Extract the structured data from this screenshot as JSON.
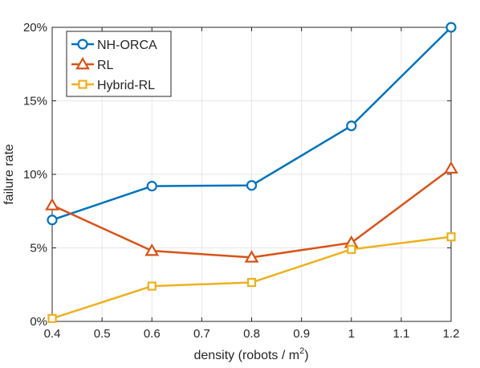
{
  "chart_data": {
    "type": "line",
    "xlabel": "density (robots / m",
    "xlabel_sup": "2",
    "xlabel_end": ")",
    "ylabel": "failure rate",
    "xlim": [
      0.4,
      1.2
    ],
    "ylim": [
      0,
      0.2
    ],
    "x_ticks": [
      0.4,
      0.5,
      0.6,
      0.7,
      0.8,
      0.9,
      1,
      1.1,
      1.2
    ],
    "x_tick_labels": [
      "0.4",
      "0.5",
      "0.6",
      "0.7",
      "0.8",
      "0.9",
      "1",
      "1.1",
      "1.2"
    ],
    "y_ticks": [
      0,
      0.05,
      0.1,
      0.15,
      0.2
    ],
    "y_tick_labels": [
      "0%",
      "5%",
      "10%",
      "15%",
      "20%"
    ],
    "grid": true,
    "legend_position": "top-left",
    "series": [
      {
        "name": "NH-ORCA",
        "color": "#0072BD",
        "marker": "circle",
        "x": [
          0.4,
          0.6,
          0.8,
          1.0,
          1.2
        ],
        "y": [
          0.069,
          0.092,
          0.0925,
          0.133,
          0.2
        ]
      },
      {
        "name": "RL",
        "color": "#D95319",
        "marker": "triangle",
        "x": [
          0.4,
          0.6,
          0.8,
          1.0,
          1.2
        ],
        "y": [
          0.079,
          0.048,
          0.0435,
          0.0535,
          0.104
        ]
      },
      {
        "name": "Hybrid-RL",
        "color": "#EDB120",
        "marker": "square",
        "x": [
          0.4,
          0.6,
          0.8,
          1.0,
          1.2
        ],
        "y": [
          0.002,
          0.024,
          0.0265,
          0.049,
          0.0575
        ]
      }
    ]
  }
}
